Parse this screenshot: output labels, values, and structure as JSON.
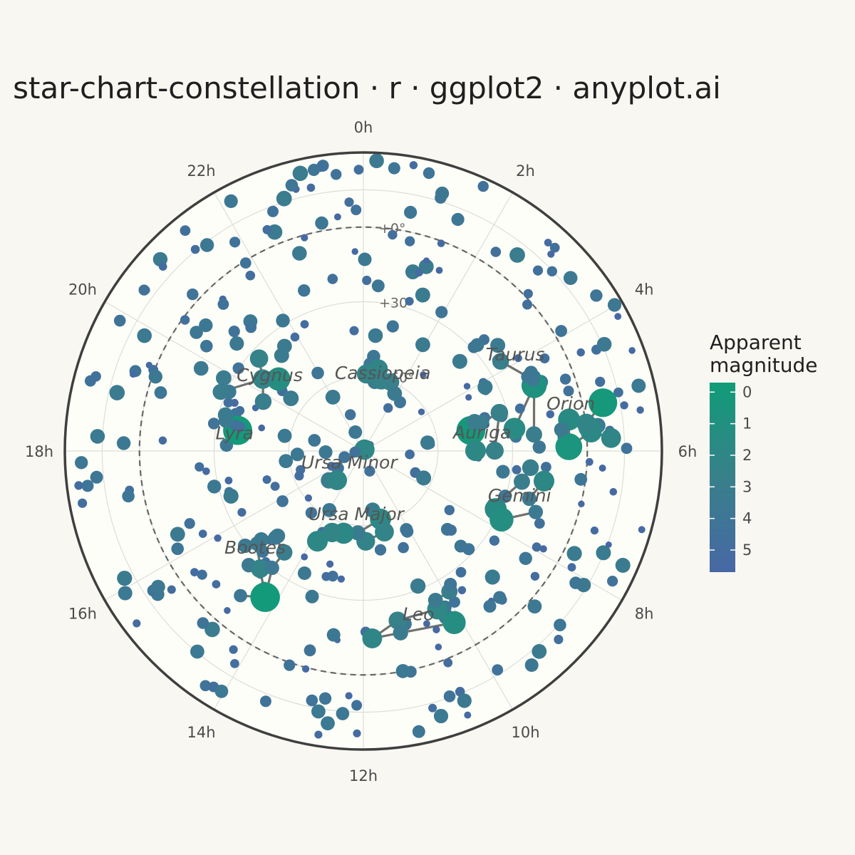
{
  "chart_data": {
    "type": "scatter",
    "projection": "polar-stereographic",
    "title": "star-chart-constellation · r · ggplot2 · anyplot.ai",
    "hour_labels": [
      "0h",
      "2h",
      "4h",
      "6h",
      "8h",
      "10h",
      "12h",
      "14h",
      "16h",
      "18h",
      "20h",
      "22h"
    ],
    "dec_labels": [
      "+0°",
      "+30°",
      "+60°"
    ],
    "dec_rings": [
      0,
      30,
      60
    ],
    "dec_limit": -30,
    "legend": {
      "title": "Apparent magnitude",
      "ticks": [
        "0",
        "1",
        "2",
        "3",
        "4",
        "5"
      ],
      "placement": "right",
      "min": -0.3,
      "max": 5.7
    },
    "colors": {
      "bright": "#109c78",
      "mid": "#38808a",
      "faint": "#4768a5",
      "line": "#707070",
      "border": "#3f3f3f",
      "panel": "#fefef8",
      "grid": "#dcdcdc",
      "equator": "#666666"
    },
    "constellations": [
      {
        "name": "Cassiopeia",
        "label_ra": 1.0,
        "label_dec": 60,
        "stars": [
          [
            0.15,
            59,
            2.3
          ],
          [
            0.68,
            56.5,
            2.2
          ],
          [
            0.95,
            60.7,
            2.5
          ],
          [
            1.43,
            60.2,
            2.7
          ],
          [
            1.9,
            63.7,
            3.4
          ]
        ],
        "lines": [
          [
            0,
            1
          ],
          [
            1,
            2
          ],
          [
            2,
            3
          ],
          [
            3,
            4
          ]
        ]
      },
      {
        "name": "Ursa Minor",
        "label_ra": 14.6,
        "label_dec": 81,
        "stars": [
          [
            2.5,
            89.3,
            2.0
          ],
          [
            17.5,
            86.6,
            4.4
          ],
          [
            16.8,
            82,
            4.2
          ],
          [
            15.7,
            77.8,
            4.3
          ],
          [
            16.3,
            75.8,
            5.0
          ],
          [
            15.3,
            71.8,
            3.0
          ],
          [
            14.8,
            74.2,
            2.1
          ]
        ],
        "lines": [
          [
            0,
            1
          ],
          [
            1,
            2
          ],
          [
            2,
            3
          ],
          [
            3,
            5
          ],
          [
            5,
            6
          ],
          [
            6,
            4
          ],
          [
            4,
            3
          ]
        ]
      },
      {
        "name": "Ursa Major",
        "label_ra": 12.4,
        "label_dec": 62,
        "stars": [
          [
            11.06,
            61.75,
            1.8
          ],
          [
            11.03,
            56.4,
            2.3
          ],
          [
            11.9,
            53.7,
            2.4
          ],
          [
            12.26,
            57.0,
            3.3
          ],
          [
            12.9,
            56.0,
            1.8
          ],
          [
            13.4,
            54.9,
            2.2
          ],
          [
            13.8,
            49.3,
            1.9
          ]
        ],
        "lines": [
          [
            0,
            1
          ],
          [
            1,
            2
          ],
          [
            2,
            3
          ],
          [
            3,
            0
          ],
          [
            3,
            4
          ],
          [
            4,
            5
          ],
          [
            5,
            6
          ]
        ]
      },
      {
        "name": "Leo",
        "label_ra": 10.8,
        "label_dec": 18.5,
        "stars": [
          [
            10.14,
            11.97,
            1.35
          ],
          [
            10.33,
            19.8,
            2.0
          ],
          [
            9.9,
            23.8,
            3.0
          ],
          [
            9.79,
            26.0,
            3.9
          ],
          [
            10.28,
            23.4,
            3.4
          ],
          [
            11.24,
            20.5,
            2.6
          ],
          [
            11.82,
            14.6,
            2.1
          ],
          [
            11.23,
            15.4,
            3.3
          ]
        ],
        "lines": [
          [
            0,
            1
          ],
          [
            1,
            4
          ],
          [
            4,
            2
          ],
          [
            2,
            3
          ],
          [
            1,
            5
          ],
          [
            5,
            6
          ],
          [
            6,
            7
          ],
          [
            7,
            0
          ]
        ]
      },
      {
        "name": "Bootes",
        "label_ra": 15.1,
        "label_dec": 30,
        "stars": [
          [
            14.26,
            19.2,
            -0.05
          ],
          [
            14.75,
            27.1,
            2.4
          ],
          [
            15.03,
            40.4,
            3.5
          ],
          [
            15.26,
            33.3,
            3.5
          ],
          [
            14.53,
            38.3,
            3.0
          ],
          [
            14.53,
            30.4,
            3.6
          ],
          [
            14.69,
            13.7,
            3.8
          ],
          [
            15.42,
            29.1,
            3.5
          ]
        ],
        "lines": [
          [
            0,
            1
          ],
          [
            1,
            3
          ],
          [
            3,
            2
          ],
          [
            2,
            4
          ],
          [
            4,
            5
          ],
          [
            5,
            0
          ],
          [
            0,
            6
          ]
        ]
      },
      {
        "name": "Lyra",
        "label_ra": 18.35,
        "label_dec": 38,
        "stars": [
          [
            18.62,
            38.8,
            0.03
          ],
          [
            18.75,
            37.6,
            4.3
          ],
          [
            18.83,
            33.4,
            3.5
          ],
          [
            18.98,
            32.7,
            3.3
          ],
          [
            18.74,
            39.6,
            4.6
          ]
        ],
        "lines": [
          [
            0,
            1
          ],
          [
            1,
            2
          ],
          [
            2,
            3
          ],
          [
            3,
            1
          ],
          [
            0,
            4
          ]
        ]
      },
      {
        "name": "Cygnus",
        "label_ra": 20.45,
        "label_dec": 43,
        "stars": [
          [
            20.69,
            45.3,
            1.25
          ],
          [
            20.37,
            40.3,
            2.2
          ],
          [
            19.5,
            27.9,
            3.1
          ],
          [
            19.75,
            45.1,
            2.9
          ],
          [
            20.77,
            33.97,
            2.5
          ],
          [
            20.4,
            54.0,
            3.2
          ]
        ],
        "lines": [
          [
            0,
            1
          ],
          [
            1,
            2
          ],
          [
            3,
            1
          ],
          [
            1,
            4
          ],
          [
            0,
            5
          ]
        ]
      },
      {
        "name": "Taurus",
        "label_ra": 3.95,
        "label_dec": 19,
        "stars": [
          [
            4.6,
            16.5,
            0.85
          ],
          [
            4.48,
            15.9,
            3.6
          ],
          [
            4.33,
            15.6,
            3.7
          ],
          [
            4.38,
            17.5,
            3.8
          ],
          [
            5.44,
            28.6,
            1.65
          ],
          [
            5.63,
            21.1,
            3.0
          ],
          [
            3.79,
            24.1,
            2.9
          ]
        ],
        "lines": [
          [
            0,
            1
          ],
          [
            1,
            2
          ],
          [
            2,
            3
          ],
          [
            0,
            4
          ],
          [
            0,
            5
          ],
          [
            3,
            6
          ]
        ]
      },
      {
        "name": "Orion",
        "label_ra": 5.25,
        "label_dec": 5,
        "stars": [
          [
            5.92,
            7.4,
            0.5
          ],
          [
            5.42,
            6.35,
            1.6
          ],
          [
            5.6,
            -1.2,
            1.7
          ],
          [
            5.68,
            -1.9,
            1.8
          ],
          [
            5.53,
            -0.3,
            2.2
          ],
          [
            5.24,
            -8.2,
            0.13
          ],
          [
            5.8,
            -9.7,
            2.1
          ],
          [
            5.59,
            9.9,
            3.4
          ]
        ],
        "lines": [
          [
            0,
            1
          ],
          [
            0,
            3
          ],
          [
            1,
            4
          ],
          [
            3,
            2
          ],
          [
            2,
            4
          ],
          [
            3,
            6
          ],
          [
            4,
            5
          ],
          [
            0,
            7
          ],
          [
            1,
            7
          ]
        ]
      },
      {
        "name": "Auriga",
        "label_ra": 5.6,
        "label_dec": 42,
        "stars": [
          [
            5.28,
            46.0,
            0.08
          ],
          [
            5.99,
            44.9,
            1.9
          ],
          [
            5.99,
            37.2,
            2.6
          ],
          [
            4.95,
            33.2,
            2.7
          ],
          [
            5.03,
            43.8,
            3.0
          ],
          [
            5.1,
            41.2,
            3.2
          ]
        ],
        "lines": [
          [
            0,
            1
          ],
          [
            1,
            2
          ],
          [
            2,
            3
          ],
          [
            3,
            5
          ],
          [
            5,
            4
          ],
          [
            4,
            0
          ]
        ]
      },
      {
        "name": "Gemini",
        "label_ra": 7.2,
        "label_dec": 24,
        "stars": [
          [
            7.58,
            31.9,
            1.6
          ],
          [
            7.76,
            28.0,
            1.15
          ],
          [
            6.63,
            16.4,
            1.9
          ],
          [
            7.07,
            20.6,
            3.5
          ],
          [
            6.38,
            22.5,
            2.9
          ],
          [
            6.73,
            25.1,
            3.0
          ],
          [
            7.3,
            16.5,
            3.5
          ],
          [
            7.18,
            30.2,
            3.8
          ]
        ],
        "lines": [
          [
            0,
            7
          ],
          [
            7,
            5
          ],
          [
            5,
            4
          ],
          [
            1,
            6
          ],
          [
            6,
            3
          ],
          [
            3,
            2
          ],
          [
            0,
            1
          ]
        ]
      }
    ],
    "background_stars_note": "Field stars are plotted as dots coloured and sized by magnitude."
  }
}
